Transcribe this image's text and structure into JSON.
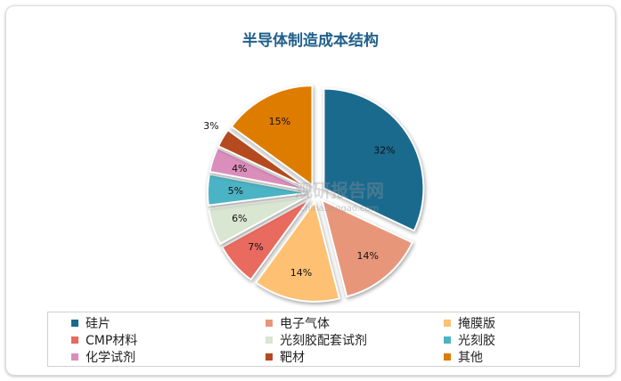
{
  "title": "半导体制造成本结构",
  "watermark": {
    "main": "观研报告网",
    "sub": "chinabaogao.com"
  },
  "chart_data": {
    "type": "pie",
    "title": "半导体制造成本结构",
    "slices": [
      {
        "name": "硅片",
        "value": 32,
        "label": "32%",
        "color": "#1a6a8e"
      },
      {
        "name": "电子气体",
        "value": 14,
        "label": "14%",
        "color": "#e8967a"
      },
      {
        "name": "掩膜版",
        "value": 14,
        "label": "14%",
        "color": "#fec072"
      },
      {
        "name": "CMP材料",
        "value": 7,
        "label": "7%",
        "color": "#e96a5f"
      },
      {
        "name": "光刻胶配套试剂",
        "value": 6,
        "label": "6%",
        "color": "#d9e6d2"
      },
      {
        "name": "光刻胶",
        "value": 5,
        "label": "5%",
        "color": "#4bb4c4"
      },
      {
        "name": "化学试剂",
        "value": 4,
        "label": "4%",
        "color": "#db8ebb"
      },
      {
        "name": "靶材",
        "value": 3,
        "label": "3%",
        "color": "#b44a1e"
      },
      {
        "name": "其他",
        "value": 15,
        "label": "15%",
        "color": "#de7c00"
      }
    ],
    "legend_position": "bottom",
    "exploded": true
  }
}
